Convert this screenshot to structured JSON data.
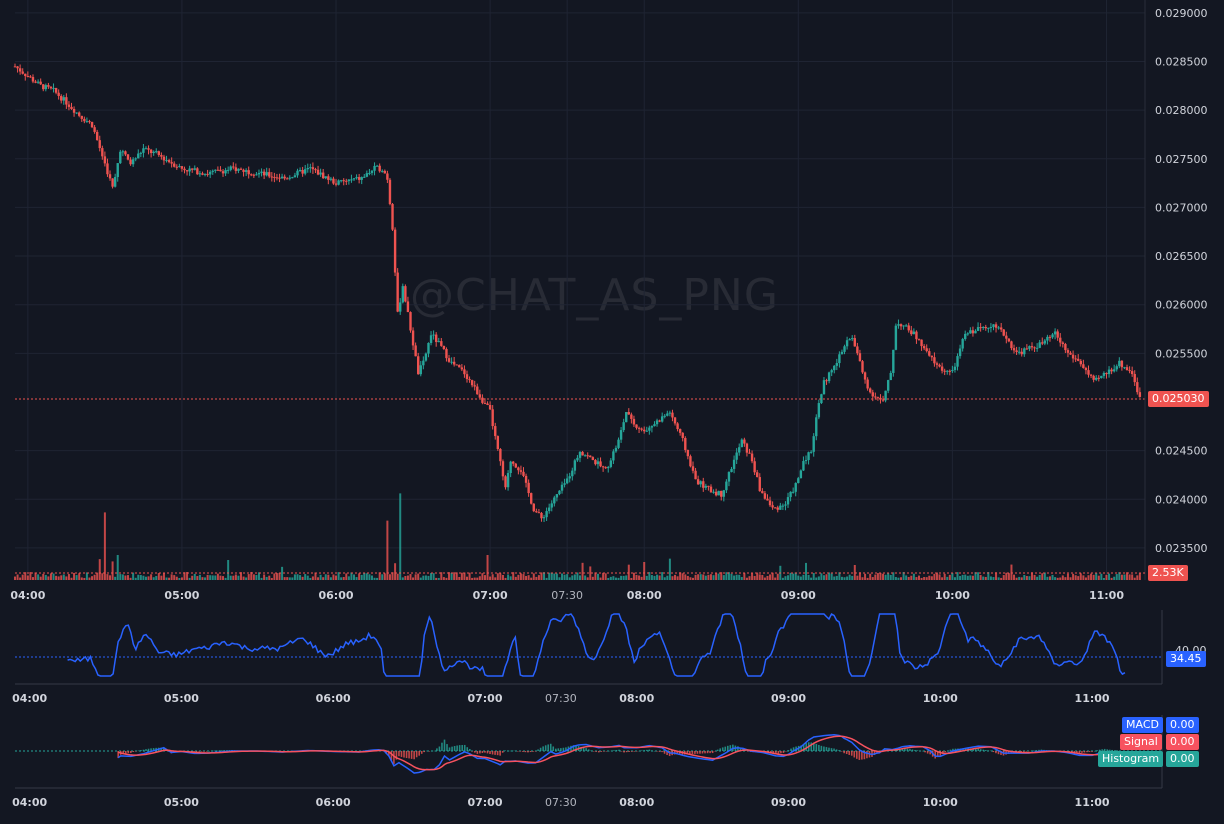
{
  "watermark": "@CHAT_AS_PNG",
  "colors": {
    "up": "#26a69a",
    "down": "#ef5350",
    "macd": "#2962ff",
    "signal": "#f7525f",
    "histogram": "#26a69a",
    "rsi": "#2962ff",
    "background": "#131722",
    "grid": "#1f2433"
  },
  "price_axis_labels": [
    "0.029000",
    "0.028500",
    "0.028000",
    "0.027500",
    "0.027000",
    "0.026500",
    "0.026000",
    "0.025500",
    "0.025030",
    "0.024500",
    "0.024000",
    "0.023500"
  ],
  "time_axis_labels": [
    "04:00",
    "05:00",
    "06:00",
    "07:00",
    "07:30",
    "08:00",
    "09:00",
    "10:00",
    "11:00"
  ],
  "badges": {
    "last_price": "0.025030",
    "volume": "2.53K",
    "rsi_value": "34.45",
    "rsi_level": "40.00"
  },
  "macd_legend": {
    "macd_label": "MACD",
    "macd_value": "0.00",
    "signal_label": "Signal",
    "signal_value": "0.00",
    "histogram_label": "Histogram",
    "histogram_value": "0.00"
  },
  "chart_data": {
    "type": "candlestick",
    "x_range": [
      "03:55",
      "11:15"
    ],
    "y_range": [
      0.02317,
      0.02905
    ],
    "last_price": 0.02503,
    "last_volume": "2.53K",
    "price_path": [
      [
        "03:55",
        0.02845
      ],
      [
        "04:00",
        0.02835
      ],
      [
        "04:05",
        0.02825
      ],
      [
        "04:10",
        0.0282
      ],
      [
        "04:15",
        0.02808
      ],
      [
        "04:20",
        0.02795
      ],
      [
        "04:25",
        0.02785
      ],
      [
        "04:30",
        0.02745
      ],
      [
        "04:33",
        0.0272
      ],
      [
        "04:36",
        0.0276
      ],
      [
        "04:40",
        0.02745
      ],
      [
        "04:45",
        0.0276
      ],
      [
        "04:50",
        0.02755
      ],
      [
        "05:00",
        0.0274
      ],
      [
        "05:10",
        0.02735
      ],
      [
        "05:20",
        0.0274
      ],
      [
        "05:30",
        0.02735
      ],
      [
        "05:40",
        0.0273
      ],
      [
        "05:50",
        0.0274
      ],
      [
        "06:00",
        0.02725
      ],
      [
        "06:10",
        0.0273
      ],
      [
        "06:15",
        0.0274
      ],
      [
        "06:18",
        0.0274
      ],
      [
        "06:20",
        0.0273
      ],
      [
        "06:22",
        0.0268
      ],
      [
        "06:24",
        0.0259
      ],
      [
        "06:26",
        0.0262
      ],
      [
        "06:30",
        0.0256
      ],
      [
        "06:32",
        0.0253
      ],
      [
        "06:34",
        0.0254
      ],
      [
        "06:37",
        0.0257
      ],
      [
        "06:40",
        0.0256
      ],
      [
        "06:45",
        0.0254
      ],
      [
        "06:50",
        0.0253
      ],
      [
        "06:55",
        0.0251
      ],
      [
        "07:00",
        0.0249
      ],
      [
        "07:03",
        0.0245
      ],
      [
        "07:06",
        0.0241
      ],
      [
        "07:08",
        0.0244
      ],
      [
        "07:12",
        0.0243
      ],
      [
        "07:17",
        0.0239
      ],
      [
        "07:20",
        0.0238
      ],
      [
        "07:25",
        0.024
      ],
      [
        "07:30",
        0.0242
      ],
      [
        "07:35",
        0.0245
      ],
      [
        "07:40",
        0.0244
      ],
      [
        "07:45",
        0.0243
      ],
      [
        "07:50",
        0.0246
      ],
      [
        "07:53",
        0.0249
      ],
      [
        "07:55",
        0.0248
      ],
      [
        "08:00",
        0.0247
      ],
      [
        "08:05",
        0.0248
      ],
      [
        "08:10",
        0.0249
      ],
      [
        "08:15",
        0.0246
      ],
      [
        "08:20",
        0.0242
      ],
      [
        "08:25",
        0.0241
      ],
      [
        "08:30",
        0.02405
      ],
      [
        "08:35",
        0.0244
      ],
      [
        "08:38",
        0.0246
      ],
      [
        "08:42",
        0.0244
      ],
      [
        "08:45",
        0.0241
      ],
      [
        "08:50",
        0.0239
      ],
      [
        "08:55",
        0.02395
      ],
      [
        "09:00",
        0.0242
      ],
      [
        "09:02",
        0.0244
      ],
      [
        "09:05",
        0.0245
      ],
      [
        "09:08",
        0.025
      ],
      [
        "09:10",
        0.0252
      ],
      [
        "09:15",
        0.0254
      ],
      [
        "09:18",
        0.0256
      ],
      [
        "09:21",
        0.02565
      ],
      [
        "09:23",
        0.0255
      ],
      [
        "09:25",
        0.0253
      ],
      [
        "09:28",
        0.0251
      ],
      [
        "09:33",
        0.025
      ],
      [
        "09:36",
        0.0253
      ],
      [
        "09:38",
        0.0258
      ],
      [
        "09:40",
        0.0258
      ],
      [
        "09:45",
        0.0257
      ],
      [
        "09:50",
        0.0255
      ],
      [
        "09:55",
        0.02535
      ],
      [
        "10:00",
        0.0253
      ],
      [
        "10:05",
        0.0257
      ],
      [
        "10:10",
        0.02575
      ],
      [
        "10:15",
        0.0258
      ],
      [
        "10:20",
        0.0257
      ],
      [
        "10:25",
        0.0255
      ],
      [
        "10:30",
        0.02555
      ],
      [
        "10:35",
        0.0256
      ],
      [
        "10:40",
        0.0257
      ],
      [
        "10:45",
        0.0255
      ],
      [
        "10:50",
        0.0254
      ],
      [
        "10:55",
        0.0252
      ],
      [
        "11:00",
        0.0253
      ],
      [
        "11:05",
        0.0254
      ],
      [
        "11:10",
        0.0253
      ],
      [
        "11:13",
        0.02503
      ]
    ],
    "volume_spikes": [
      [
        "04:30",
        "high"
      ],
      [
        "04:35",
        "medium"
      ],
      [
        "06:20",
        "high"
      ],
      [
        "06:25",
        "high"
      ],
      [
        "06:59",
        "medium"
      ],
      [
        "08:00",
        "low"
      ]
    ],
    "rsi": {
      "value": 34.45,
      "level": 40
    },
    "macd": {
      "macd": 0.0,
      "signal": 0.0,
      "histogram": 0.0
    }
  }
}
